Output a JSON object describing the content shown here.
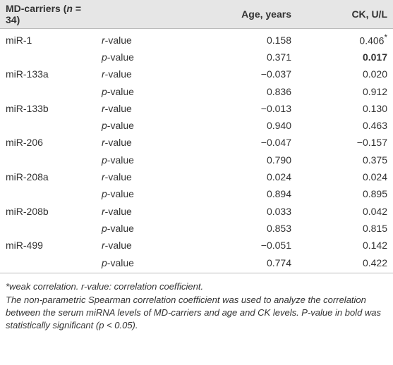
{
  "table": {
    "header": {
      "label": [
        "MD-carriers (",
        "n",
        " = 34)"
      ],
      "columns": [
        "Age, years",
        "CK, U/L"
      ]
    },
    "stat_labels": [
      {
        "symbol": "r",
        "suffix": "-value"
      },
      {
        "symbol": "p",
        "suffix": "-value"
      }
    ],
    "rows": [
      {
        "name": "miR-1",
        "r": [
          "0.158",
          {
            "text": "0.406",
            "sup": "*"
          }
        ],
        "p": [
          "0.371",
          {
            "text": "0.017",
            "bold": true
          }
        ]
      },
      {
        "name": "miR-133a",
        "r": [
          "−0.037",
          "0.020"
        ],
        "p": [
          "0.836",
          "0.912"
        ]
      },
      {
        "name": "miR-133b",
        "r": [
          "−0.013",
          "0.130"
        ],
        "p": [
          "0.940",
          "0.463"
        ]
      },
      {
        "name": "miR-206",
        "r": [
          "−0.047",
          "−0.157"
        ],
        "p": [
          "0.790",
          "0.375"
        ]
      },
      {
        "name": "miR-208a",
        "r": [
          "0.024",
          "0.024"
        ],
        "p": [
          "0.894",
          "0.895"
        ]
      },
      {
        "name": "miR-208b",
        "r": [
          "0.033",
          "0.042"
        ],
        "p": [
          "0.853",
          "0.815"
        ]
      },
      {
        "name": "miR-499",
        "r": [
          "−0.051",
          "0.142"
        ],
        "p": [
          "0.774",
          "0.422"
        ]
      }
    ]
  },
  "footnotes": [
    "*weak correlation. r-value: correlation coefficient.",
    "The non-parametric Spearman correlation coefficient was used to analyze the correlation between the serum miRNA levels of MD-carriers and age and CK levels. P-value in bold was statistically significant (p < 0.05)."
  ]
}
